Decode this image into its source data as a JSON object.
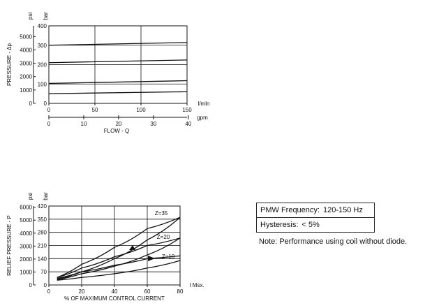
{
  "chart_data": [
    {
      "type": "line",
      "ylabel": "PRESSURE - Δp",
      "ylabel_units": [
        "psi",
        "bar"
      ],
      "xlabel": "FLOW - Q",
      "x_unit": "l/mln",
      "x2_unit": "gpm",
      "xlim": [
        0,
        150
      ],
      "ylim": [
        0,
        400
      ],
      "x_ticks": [
        "0",
        "50",
        "100",
        "150"
      ],
      "x2_ticks": [
        "0",
        "10",
        "20",
        "30",
        "40"
      ],
      "y_bar_ticks": [
        "0",
        "100",
        "200",
        "300",
        "400"
      ],
      "y_psi_ticks": [
        "0",
        "1000",
        "2000",
        "3000",
        "4000",
        "5000"
      ],
      "grid": true,
      "series": [
        {
          "x": [
            0,
            150
          ],
          "y": [
            300,
            314
          ]
        },
        {
          "x": [
            0,
            150
          ],
          "y": [
            210,
            224
          ]
        },
        {
          "x": [
            0,
            150
          ],
          "y": [
            103,
            117
          ]
        },
        {
          "x": [
            0,
            150
          ],
          "y": [
            50,
            60
          ]
        }
      ]
    },
    {
      "type": "line",
      "ylabel": "RELIEF PRESSURE - P",
      "ylabel_units": [
        "psi",
        "bar"
      ],
      "xlabel": "% OF MAXIMUM CONTROL CURRENT",
      "x_unit": "I Msx.",
      "xlim": [
        0,
        80
      ],
      "ylim": [
        0,
        420
      ],
      "x_ticks": [
        "0",
        "20",
        "40",
        "60",
        "80"
      ],
      "y_bar_ticks": [
        "0",
        "70",
        "140",
        "210",
        "280",
        "350",
        "420"
      ],
      "y_psi_ticks": [
        "0",
        "1000",
        "2000",
        "3000",
        "4000",
        "5000",
        "6000"
      ],
      "grid": true,
      "curve_labels": [
        "Z=35",
        "Z=20",
        "Z=10"
      ],
      "series": [
        {
          "name": "Z=35",
          "x": [
            5,
            20,
            40,
            60,
            80
          ],
          "y": [
            40,
            110,
            200,
            300,
            360
          ]
        },
        {
          "name": "Z=35",
          "x": [
            5,
            20,
            40,
            60,
            80
          ],
          "y": [
            30,
            70,
            140,
            240,
            360
          ]
        },
        {
          "name": "Z=20",
          "x": [
            5,
            20,
            40,
            60,
            80
          ],
          "y": [
            40,
            90,
            150,
            210,
            250
          ]
        },
        {
          "name": "Z=20",
          "x": [
            5,
            20,
            40,
            60,
            80
          ],
          "y": [
            28,
            60,
            100,
            160,
            250
          ]
        },
        {
          "name": "Z=10",
          "x": [
            5,
            20,
            40,
            60,
            80
          ],
          "y": [
            35,
            70,
            105,
            140,
            155
          ]
        },
        {
          "name": "Z=10",
          "x": [
            5,
            20,
            40,
            60,
            80
          ],
          "y": [
            25,
            40,
            60,
            90,
            130
          ]
        }
      ]
    }
  ],
  "info": {
    "rows": [
      {
        "label": "PMW Frequency:",
        "value": "120-150 Hz"
      },
      {
        "label": "Hysteresis:",
        "value": "< 5%"
      }
    ],
    "note": "Note: Performance using coil without diode."
  }
}
